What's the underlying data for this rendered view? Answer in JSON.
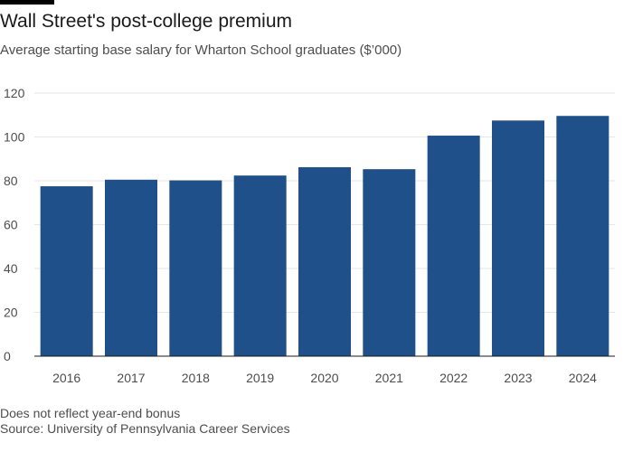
{
  "chart_data": {
    "type": "bar",
    "title": "Wall Street's post-college premium",
    "subtitle": "Average starting base salary for Wharton School graduates ($’000)",
    "categories": [
      "2016",
      "2017",
      "2018",
      "2019",
      "2020",
      "2021",
      "2022",
      "2023",
      "2024"
    ],
    "values": [
      77.5,
      80.5,
      80.2,
      82.4,
      86.2,
      85.3,
      100.6,
      107.5,
      109.6
    ],
    "ylim": [
      0,
      120
    ],
    "yticks": [
      0,
      20,
      40,
      60,
      80,
      100,
      120
    ],
    "xlabel": "",
    "ylabel": "",
    "grid": true,
    "bar_color": "#1f5089",
    "grid_color": "#e6e6e6",
    "baseline_color": "#1a1a1a"
  },
  "notes": {
    "note": "Does not reflect year-end bonus",
    "source": "Source: University of Pennsylvania Career Services"
  },
  "decor": {
    "top_rule_color": "#000000"
  }
}
